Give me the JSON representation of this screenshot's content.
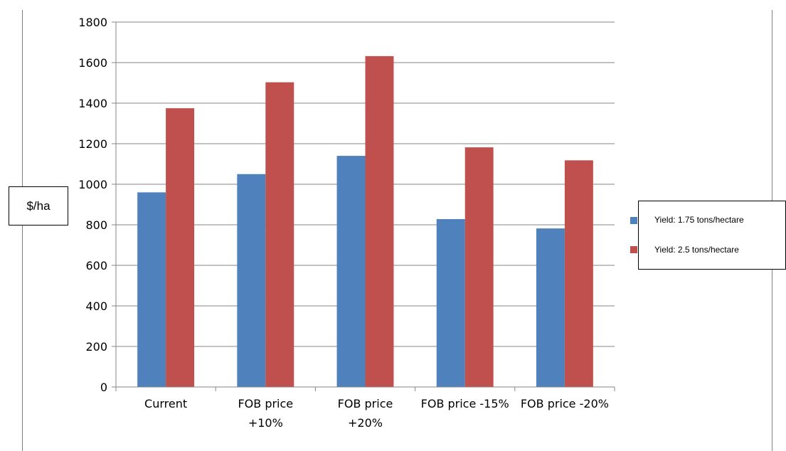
{
  "chart_data": {
    "type": "bar",
    "categories": [
      [
        "Current"
      ],
      [
        "FOB price",
        "+10%"
      ],
      [
        "FOB price",
        "+20%"
      ],
      [
        "FOB price -15%"
      ],
      [
        "FOB price -20%"
      ]
    ],
    "series": [
      {
        "name": "Yield: 1.75 tons/hectare",
        "color": "#4f81bd",
        "values": [
          960,
          1050,
          1140,
          828,
          782
        ]
      },
      {
        "name": "Yield: 2.5 tons/hectare",
        "color": "#c0504d",
        "values": [
          1375,
          1503,
          1632,
          1182,
          1118
        ]
      }
    ],
    "ylim": [
      0,
      1800
    ],
    "yticks": [
      0,
      200,
      400,
      600,
      800,
      1000,
      1200,
      1400,
      1600,
      1800
    ],
    "ylabel": "$/ha",
    "xlabel": "",
    "grid": true,
    "legend_position": "right"
  }
}
